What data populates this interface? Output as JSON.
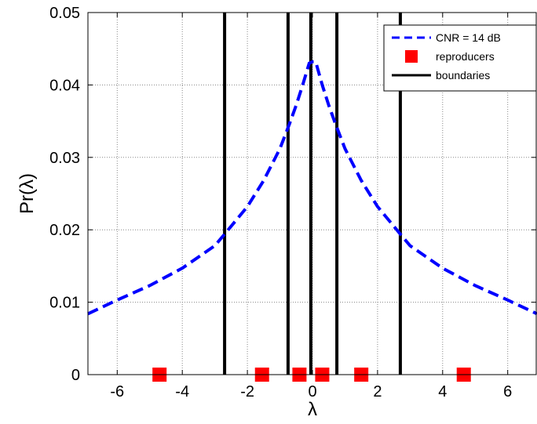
{
  "chart_data": {
    "type": "line",
    "title": "",
    "xlabel": "λ",
    "ylabel": "Pr(λ)",
    "xlim": [
      -6.9,
      6.9
    ],
    "ylim": [
      0,
      0.05
    ],
    "xticks": [
      -6,
      -4,
      -2,
      0,
      2,
      4,
      6
    ],
    "yticks": [
      0,
      0.01,
      0.02,
      0.03,
      0.04,
      0.05
    ],
    "xtick_labels": [
      "-6",
      "-4",
      "-2",
      "0",
      "2",
      "4",
      "6"
    ],
    "ytick_labels": [
      "0",
      "0.01",
      "0.02",
      "0.03",
      "0.04",
      "0.05"
    ],
    "grid": true,
    "legend_position": "top-right",
    "legend": [
      "CNR = 14 dB",
      "reproducers",
      "boundaries"
    ],
    "series": [
      {
        "name": "CNR = 14 dB",
        "style": "dashed",
        "color": "#0000ff",
        "x": [
          -6.9,
          -6,
          -5,
          -4,
          -3,
          -2.7,
          -2,
          -1.5,
          -1,
          -0.7,
          -0.5,
          -0.3,
          -0.1,
          0,
          0.1,
          0.3,
          0.5,
          0.7,
          1,
          1.5,
          2,
          2.7,
          3,
          4,
          5,
          6,
          6.9
        ],
        "y": [
          0.0084,
          0.0103,
          0.0123,
          0.0147,
          0.0178,
          0.0194,
          0.0232,
          0.0268,
          0.0312,
          0.0347,
          0.0372,
          0.04,
          0.043,
          0.0432,
          0.0432,
          0.04,
          0.0372,
          0.0347,
          0.0312,
          0.0268,
          0.0232,
          0.0194,
          0.0178,
          0.0147,
          0.0123,
          0.0103,
          0.0084
        ]
      },
      {
        "name": "reproducers",
        "style": "markers",
        "color": "#ff0000",
        "x": [
          -4.7,
          -1.55,
          -0.4,
          0.3,
          1.5,
          4.65
        ],
        "y": [
          0,
          0,
          0,
          0,
          0,
          0
        ]
      },
      {
        "name": "boundaries",
        "style": "vertical-lines",
        "color": "#000000",
        "x": [
          -2.7,
          -0.75,
          -0.05,
          0.75,
          2.7
        ]
      }
    ]
  }
}
